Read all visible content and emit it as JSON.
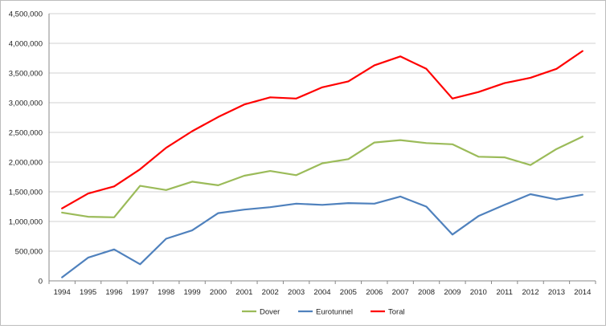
{
  "chart_data": {
    "type": "line",
    "title": "",
    "xlabel": "",
    "ylabel": "",
    "x": [
      "1994",
      "1995",
      "1996",
      "1997",
      "1998",
      "1999",
      "2000",
      "2001",
      "2002",
      "2003",
      "2004",
      "2005",
      "2006",
      "2007",
      "2008",
      "2009",
      "2010",
      "2011",
      "2012",
      "2013",
      "2014"
    ],
    "ylim": [
      0,
      4500000
    ],
    "yticks": [
      0,
      500000,
      1000000,
      1500000,
      2000000,
      2500000,
      3000000,
      3500000,
      4000000,
      4500000
    ],
    "ytick_labels": [
      "0",
      "500,000",
      "1,000,000",
      "1,500,000",
      "2,000,000",
      "2,500,000",
      "3,000,000",
      "3,500,000",
      "4,000,000",
      "4,500,000"
    ],
    "grid": true,
    "legend_position": "bottom",
    "series": [
      {
        "name": "Dover",
        "color": "#9bbb59",
        "values": [
          1150000,
          1080000,
          1070000,
          1600000,
          1530000,
          1670000,
          1610000,
          1770000,
          1850000,
          1780000,
          1980000,
          2050000,
          2330000,
          2370000,
          2320000,
          2300000,
          2090000,
          2080000,
          1950000,
          2220000,
          2430000
        ]
      },
      {
        "name": "Eurotunnel",
        "color": "#4f81bd",
        "values": [
          60000,
          390000,
          530000,
          280000,
          710000,
          850000,
          1140000,
          1200000,
          1240000,
          1300000,
          1280000,
          1310000,
          1300000,
          1420000,
          1250000,
          780000,
          1090000,
          1280000,
          1460000,
          1370000,
          1450000
        ]
      },
      {
        "name": "Toral",
        "color": "#ff0000",
        "values": [
          1220000,
          1470000,
          1590000,
          1880000,
          2240000,
          2520000,
          2760000,
          2970000,
          3090000,
          3070000,
          3260000,
          3360000,
          3630000,
          3780000,
          3570000,
          3070000,
          3180000,
          3330000,
          3420000,
          3570000,
          3870000
        ]
      }
    ]
  }
}
